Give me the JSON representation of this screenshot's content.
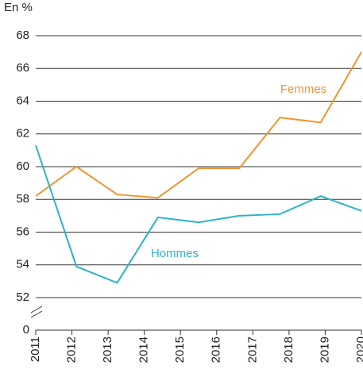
{
  "chart_data": {
    "type": "line",
    "y_label": "En %",
    "xlim": [
      2011,
      2020
    ],
    "xticks": [
      2011,
      2012,
      2013,
      2014,
      2015,
      2016,
      2017,
      2018,
      2019,
      2020
    ],
    "ylim": [
      0,
      68
    ],
    "axis_break": [
      0,
      52
    ],
    "yticks": [
      0,
      52,
      54,
      56,
      58,
      60,
      62,
      64,
      66,
      68
    ],
    "grid": true,
    "series": [
      {
        "name": "Femmes",
        "color": "#f0942e",
        "x": [
          2011,
          2012.125,
          2013.25,
          2014.375,
          2015.5,
          2016.625,
          2017.75,
          2018.875,
          2020
        ],
        "values": [
          58.2,
          60.0,
          58.3,
          58.1,
          59.9,
          59.9,
          63.0,
          62.7,
          67.0
        ]
      },
      {
        "name": "Hommes",
        "color": "#2bb3c9",
        "x": [
          2011,
          2012.125,
          2013.25,
          2014.375,
          2015.5,
          2016.625,
          2017.75,
          2018.875,
          2020
        ],
        "values": [
          61.3,
          53.9,
          52.9,
          56.9,
          56.6,
          57.0,
          57.1,
          58.2,
          57.3
        ]
      }
    ]
  }
}
